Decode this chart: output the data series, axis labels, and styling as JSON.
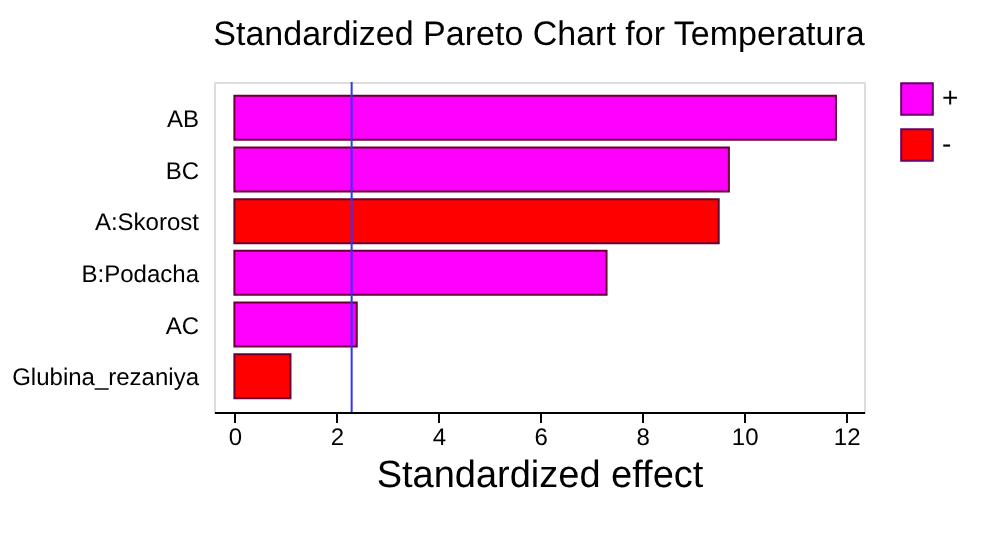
{
  "chart_data": {
    "type": "bar",
    "orientation": "horizontal",
    "title": "Standardized Pareto Chart for Temperatura",
    "xlabel": "Standardized effect",
    "categories": [
      "AB",
      "BC",
      "A:Skorost",
      "B:Podacha",
      "AC",
      "Glubina_rezaniya"
    ],
    "series": [
      {
        "name": "+",
        "color": "#ff00ff",
        "values": [
          11.8,
          9.7,
          null,
          7.3,
          2.4,
          null
        ]
      },
      {
        "name": "-",
        "color": "#ff0000",
        "values": [
          null,
          null,
          9.5,
          null,
          null,
          1.1
        ]
      }
    ],
    "xlim": [
      -0.4,
      12.35
    ],
    "xticks": [
      0,
      2,
      4,
      6,
      8,
      10,
      12
    ],
    "grid": false,
    "legend": "top right",
    "ref_lines": [
      {
        "axis": "x",
        "value": 2.3,
        "color": "#3333ff"
      }
    ]
  }
}
